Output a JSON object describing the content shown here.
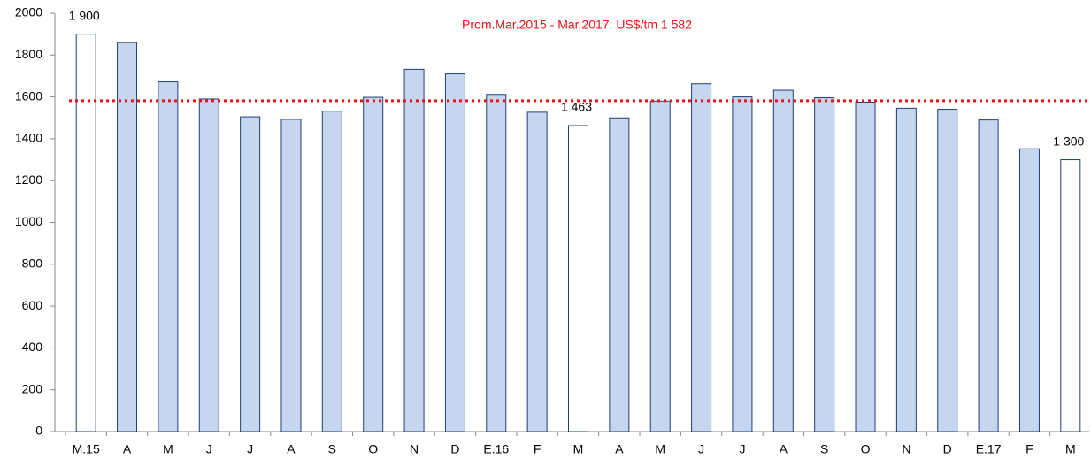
{
  "chart_data": {
    "type": "bar",
    "categories": [
      "M.15",
      "A",
      "M",
      "J",
      "J",
      "A",
      "S",
      "O",
      "N",
      "D",
      "E.16",
      "F",
      "M",
      "A",
      "M",
      "J",
      "J",
      "A",
      "S",
      "O",
      "N",
      "D",
      "E.17",
      "F",
      "M"
    ],
    "values": [
      1900,
      1860,
      1672,
      1590,
      1505,
      1493,
      1532,
      1598,
      1732,
      1710,
      1612,
      1527,
      1463,
      1500,
      1580,
      1663,
      1600,
      1632,
      1596,
      1575,
      1546,
      1541,
      1490,
      1352,
      1300
    ],
    "value_labels": [
      "1 900",
      null,
      null,
      null,
      null,
      null,
      null,
      null,
      null,
      null,
      null,
      null,
      "1 463",
      null,
      null,
      null,
      null,
      null,
      null,
      null,
      null,
      null,
      null,
      null,
      "1 300"
    ],
    "colors": [
      "#ffffff",
      "#c5d6ee",
      "#c5d6ee",
      "#c5d6ee",
      "#c5d6ee",
      "#c5d6ee",
      "#c5d6ee",
      "#c5d6ee",
      "#c5d6ee",
      "#c5d6ee",
      "#c5d6ee",
      "#c5d6ee",
      "#ffffff",
      "#c5d6ee",
      "#c5d6ee",
      "#c5d6ee",
      "#c5d6ee",
      "#c5d6ee",
      "#c5d6ee",
      "#c5d6ee",
      "#c5d6ee",
      "#c5d6ee",
      "#c5d6ee",
      "#c5d6ee",
      "#ffffff"
    ],
    "edge_color": "#1f3f7a",
    "reference_line": {
      "value": 1582,
      "label": "Prom.Mar.2015 - Mar.2017: US$/tm 1 582",
      "color": "#e8141a"
    },
    "ylim": [
      0,
      2000
    ],
    "yticks": [
      0,
      200,
      400,
      600,
      800,
      1000,
      1200,
      1400,
      1600,
      1800,
      2000
    ]
  }
}
